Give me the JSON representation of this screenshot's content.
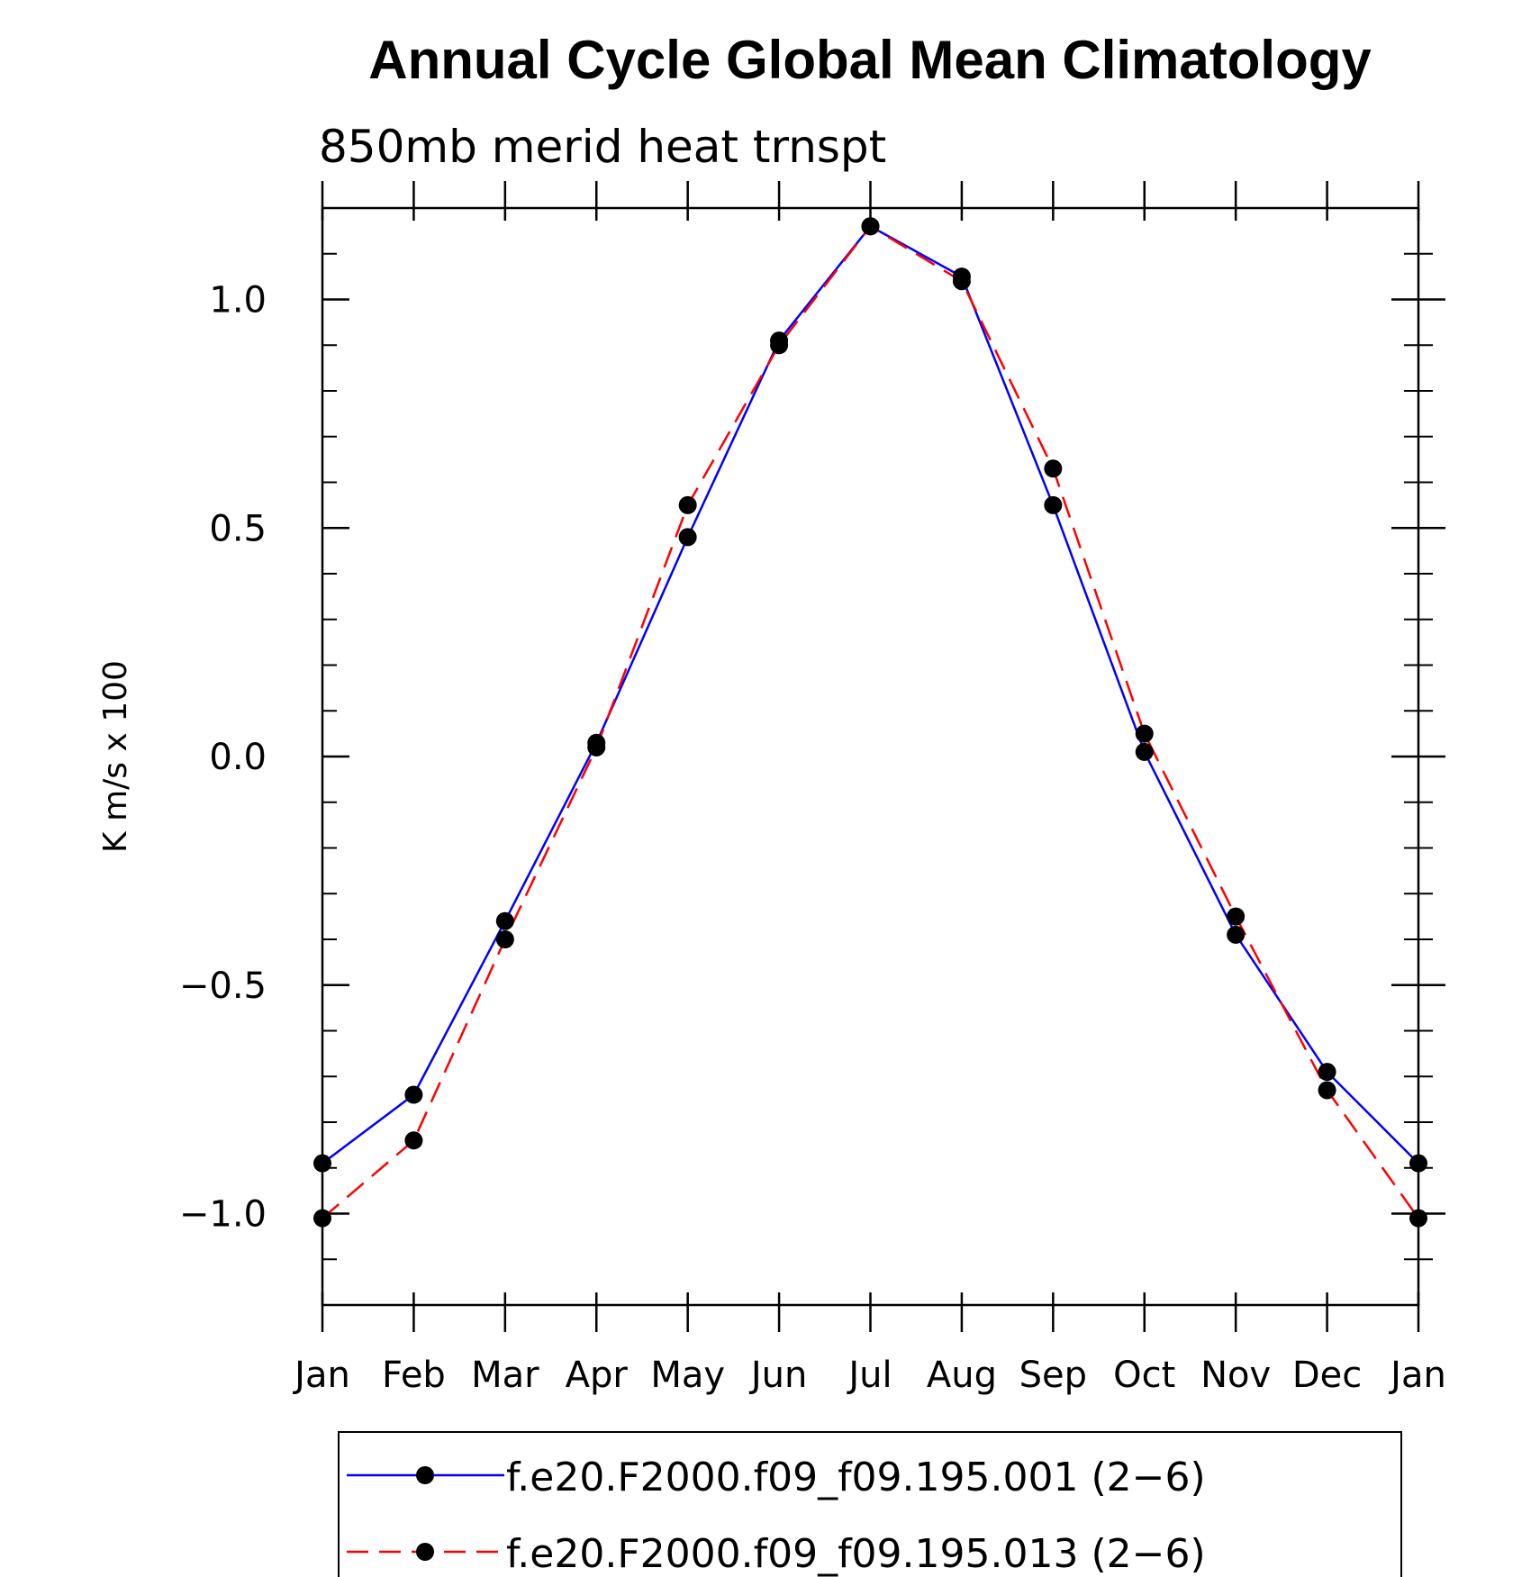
{
  "chart_data": {
    "type": "line",
    "title": "Annual Cycle Global Mean Climatology",
    "subtitle": "850mb merid heat trnspt",
    "xlabel": "",
    "ylabel": "K m/s x 100",
    "categories": [
      "Jan",
      "Feb",
      "Mar",
      "Apr",
      "May",
      "Jun",
      "Jul",
      "Aug",
      "Sep",
      "Oct",
      "Nov",
      "Dec",
      "Jan"
    ],
    "ylim": [
      -1.2,
      1.2
    ],
    "yticks": [
      -1.0,
      -0.5,
      0.0,
      0.5,
      1.0
    ],
    "ytick_labels": [
      "−1.0",
      "−0.5",
      "0.0",
      "0.5",
      "1.0"
    ],
    "grid": false,
    "legend_position": "bottom",
    "series": [
      {
        "name": "f.e20.F2000.f09_f09.195.001 (2−6)",
        "color": "#0000ff",
        "line_style": "solid",
        "marker": "filled-circle",
        "values": [
          -0.89,
          -0.74,
          -0.36,
          0.03,
          0.48,
          0.91,
          1.16,
          1.05,
          0.55,
          0.01,
          -0.39,
          -0.69,
          -0.89
        ]
      },
      {
        "name": "f.e20.F2000.f09_f09.195.013 (2−6)",
        "color": "#ff0000",
        "line_style": "dashed",
        "marker": "filled-circle",
        "values": [
          -1.01,
          -0.84,
          -0.4,
          0.02,
          0.55,
          0.9,
          1.16,
          1.04,
          0.63,
          0.05,
          -0.35,
          -0.73,
          -1.01
        ]
      }
    ]
  }
}
